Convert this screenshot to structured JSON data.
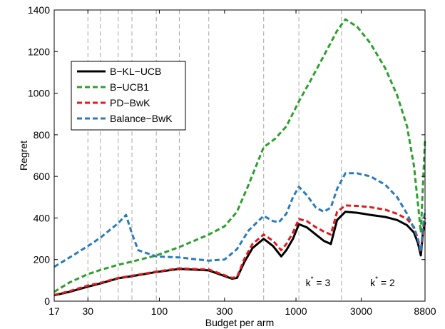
{
  "chart_data": {
    "type": "line",
    "xlabel": "Budget per arm",
    "ylabel": "Regret",
    "xscale": "log",
    "xlim": [
      17,
      8800
    ],
    "ylim": [
      0,
      1400
    ],
    "xticks": [
      17,
      30,
      100,
      300,
      1000,
      3000,
      8800
    ],
    "yticks": [
      0,
      200,
      400,
      600,
      800,
      1000,
      1200,
      1400
    ],
    "vlines": [
      30,
      37,
      50,
      63,
      95,
      140,
      230,
      580,
      1050,
      2150
    ],
    "grid": "vertical dashed lines",
    "legend_position": "top-left",
    "annotations": [
      {
        "star": "*",
        "base": "k",
        "rest": " = 3",
        "x": 1450,
        "y": 90
      },
      {
        "star": "*",
        "base": "k",
        "rest": " = 2",
        "x": 4300,
        "y": 90
      }
    ],
    "series": [
      {
        "name": "B−KL−UCB",
        "color": "#000000",
        "dash": "solid",
        "x": [
          17,
          22,
          30,
          37,
          50,
          63,
          95,
          140,
          230,
          340,
          370,
          420,
          480,
          580,
          680,
          780,
          850,
          950,
          1050,
          1200,
          1400,
          1600,
          1800,
          2000,
          2300,
          2800,
          3500,
          4500,
          5500,
          6500,
          7300,
          7800,
          8200,
          8500,
          8800
        ],
        "values": [
          28,
          45,
          70,
          85,
          110,
          120,
          140,
          155,
          148,
          108,
          112,
          190,
          255,
          300,
          265,
          215,
          245,
          300,
          370,
          355,
          320,
          290,
          275,
          390,
          430,
          425,
          415,
          405,
          390,
          365,
          330,
          280,
          220,
          330,
          380
        ]
      },
      {
        "name": "B−UCB1",
        "color": "#2ca02c",
        "dash": "dashed",
        "x": [
          17,
          22,
          30,
          37,
          50,
          63,
          95,
          140,
          230,
          300,
          370,
          450,
          580,
          700,
          850,
          1050,
          1300,
          1600,
          2000,
          2300,
          2800,
          3500,
          4500,
          5500,
          6500,
          7300,
          7800,
          8200,
          8500,
          8800
        ],
        "values": [
          45,
          90,
          130,
          150,
          175,
          190,
          220,
          260,
          320,
          360,
          430,
          560,
          740,
          780,
          840,
          960,
          1070,
          1180,
          1300,
          1355,
          1320,
          1240,
          1120,
          990,
          840,
          650,
          470,
          330,
          560,
          780
        ]
      },
      {
        "name": "PD−BwK",
        "color": "#e31a1c",
        "dash": "dashed",
        "x": [
          17,
          22,
          30,
          37,
          50,
          63,
          95,
          140,
          230,
          340,
          370,
          420,
          480,
          580,
          680,
          780,
          850,
          950,
          1050,
          1200,
          1400,
          1600,
          1800,
          2000,
          2300,
          2800,
          3500,
          4500,
          5500,
          6500,
          7300,
          7800,
          8200,
          8500,
          8800
        ],
        "values": [
          30,
          48,
          75,
          88,
          112,
          122,
          142,
          158,
          152,
          112,
          116,
          205,
          275,
          320,
          290,
          245,
          275,
          330,
          395,
          385,
          355,
          335,
          320,
          430,
          460,
          458,
          452,
          440,
          420,
          395,
          355,
          300,
          235,
          345,
          400
        ]
      },
      {
        "name": "Balance−BwK",
        "color": "#2b7bba",
        "dash": "dashed",
        "x": [
          17,
          22,
          30,
          37,
          50,
          57,
          63,
          70,
          95,
          140,
          230,
          300,
          370,
          450,
          580,
          680,
          750,
          850,
          950,
          1050,
          1200,
          1400,
          1600,
          1800,
          2000,
          2300,
          2800,
          3500,
          4500,
          5500,
          6500,
          7300,
          7800,
          8200,
          8500,
          8800
        ],
        "values": [
          165,
          210,
          265,
          305,
          375,
          415,
          325,
          245,
          215,
          210,
          195,
          200,
          250,
          340,
          410,
          385,
          380,
          420,
          500,
          550,
          510,
          450,
          430,
          450,
          540,
          615,
          615,
          600,
          560,
          500,
          420,
          350,
          300,
          240,
          350,
          440
        ]
      }
    ]
  }
}
